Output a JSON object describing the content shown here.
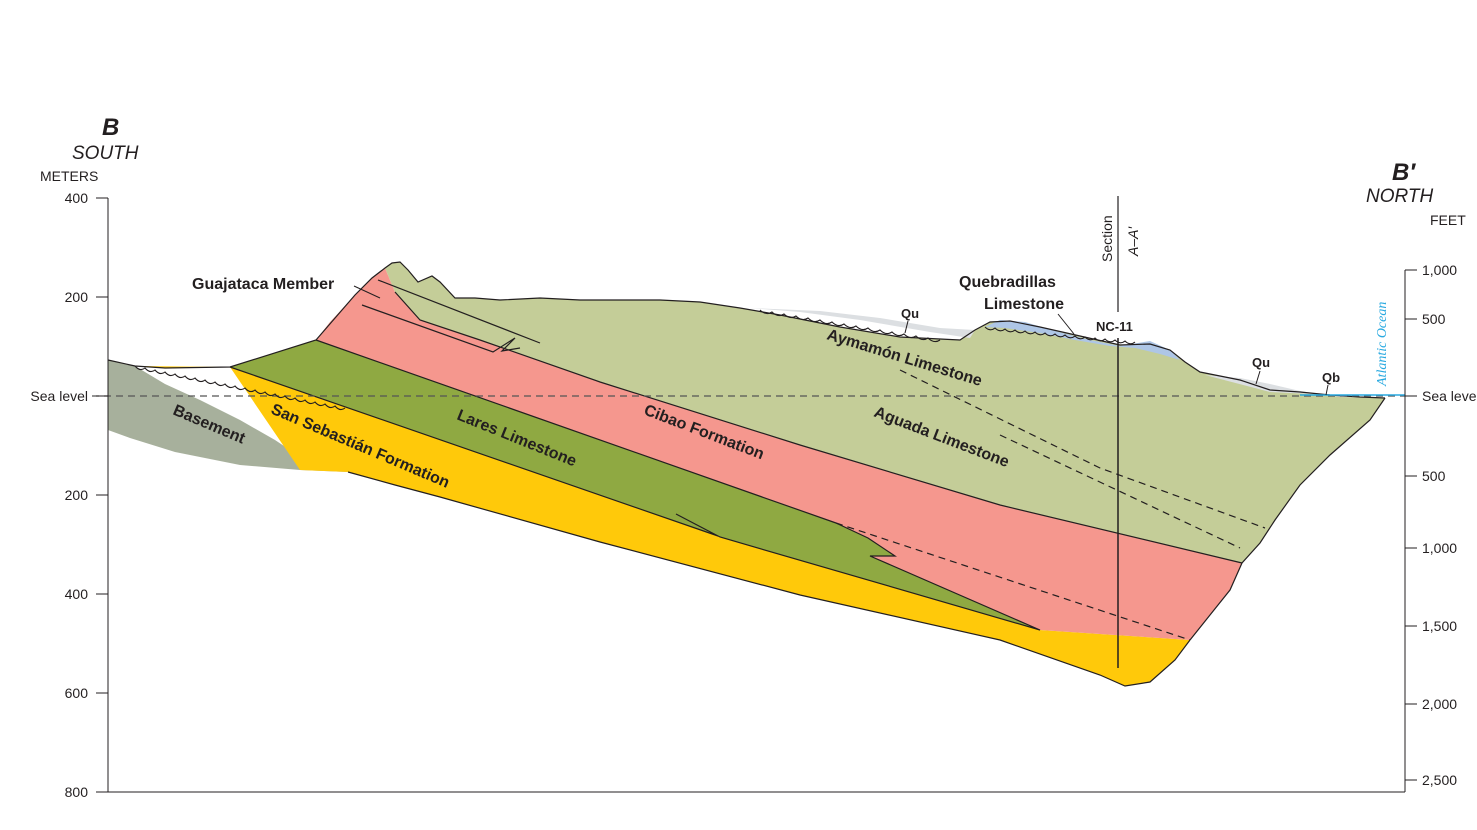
{
  "figure": {
    "left_end": {
      "letter": "B",
      "direction": "SOUTH"
    },
    "right_end": {
      "letter": "B′",
      "direction": "NORTH"
    },
    "left_axis": {
      "unit": "METERS",
      "ticks": [
        "400",
        "200",
        "Sea level",
        "200",
        "400",
        "600",
        "800"
      ],
      "values": [
        400,
        200,
        0,
        -200,
        -400,
        -600,
        -800
      ]
    },
    "right_axis": {
      "unit": "FEET",
      "ticks": [
        "1,000",
        "500",
        "Sea level",
        "500",
        "1,000",
        "1,500",
        "2,000",
        "2,500"
      ],
      "values": [
        1000,
        500,
        0,
        -500,
        -1000,
        -1500,
        -2000,
        -2500
      ]
    },
    "section_marker": {
      "line1": "Section",
      "line2": "A–A′"
    },
    "well": {
      "name": "NC-11"
    },
    "water_body": "Atlantic Ocean",
    "units": {
      "basement": "Basement",
      "san_sebastian": "San Sebastián Formation",
      "lares": "Lares Limestone",
      "cibao": "Cibao Formation",
      "aguada": "Aguada Limestone",
      "aymamon": "Aymamón Limestone",
      "guajataca": "Guajataca Member",
      "quebradillas_1": "Quebradillas",
      "quebradillas_2": "Limestone",
      "qu_1": "Qu",
      "qu_2": "Qu",
      "qb": "Qb"
    },
    "colors": {
      "basement": "#a7b09c",
      "san_sebastian": "#ffc90a",
      "lares": "#8fa942",
      "cibao": "#f5978e",
      "aymamon_aguada": "#c4cd98",
      "quebradillas": "#aec6e6",
      "surficial": "#dcdfe2",
      "ocean": "#29a9e0"
    }
  }
}
